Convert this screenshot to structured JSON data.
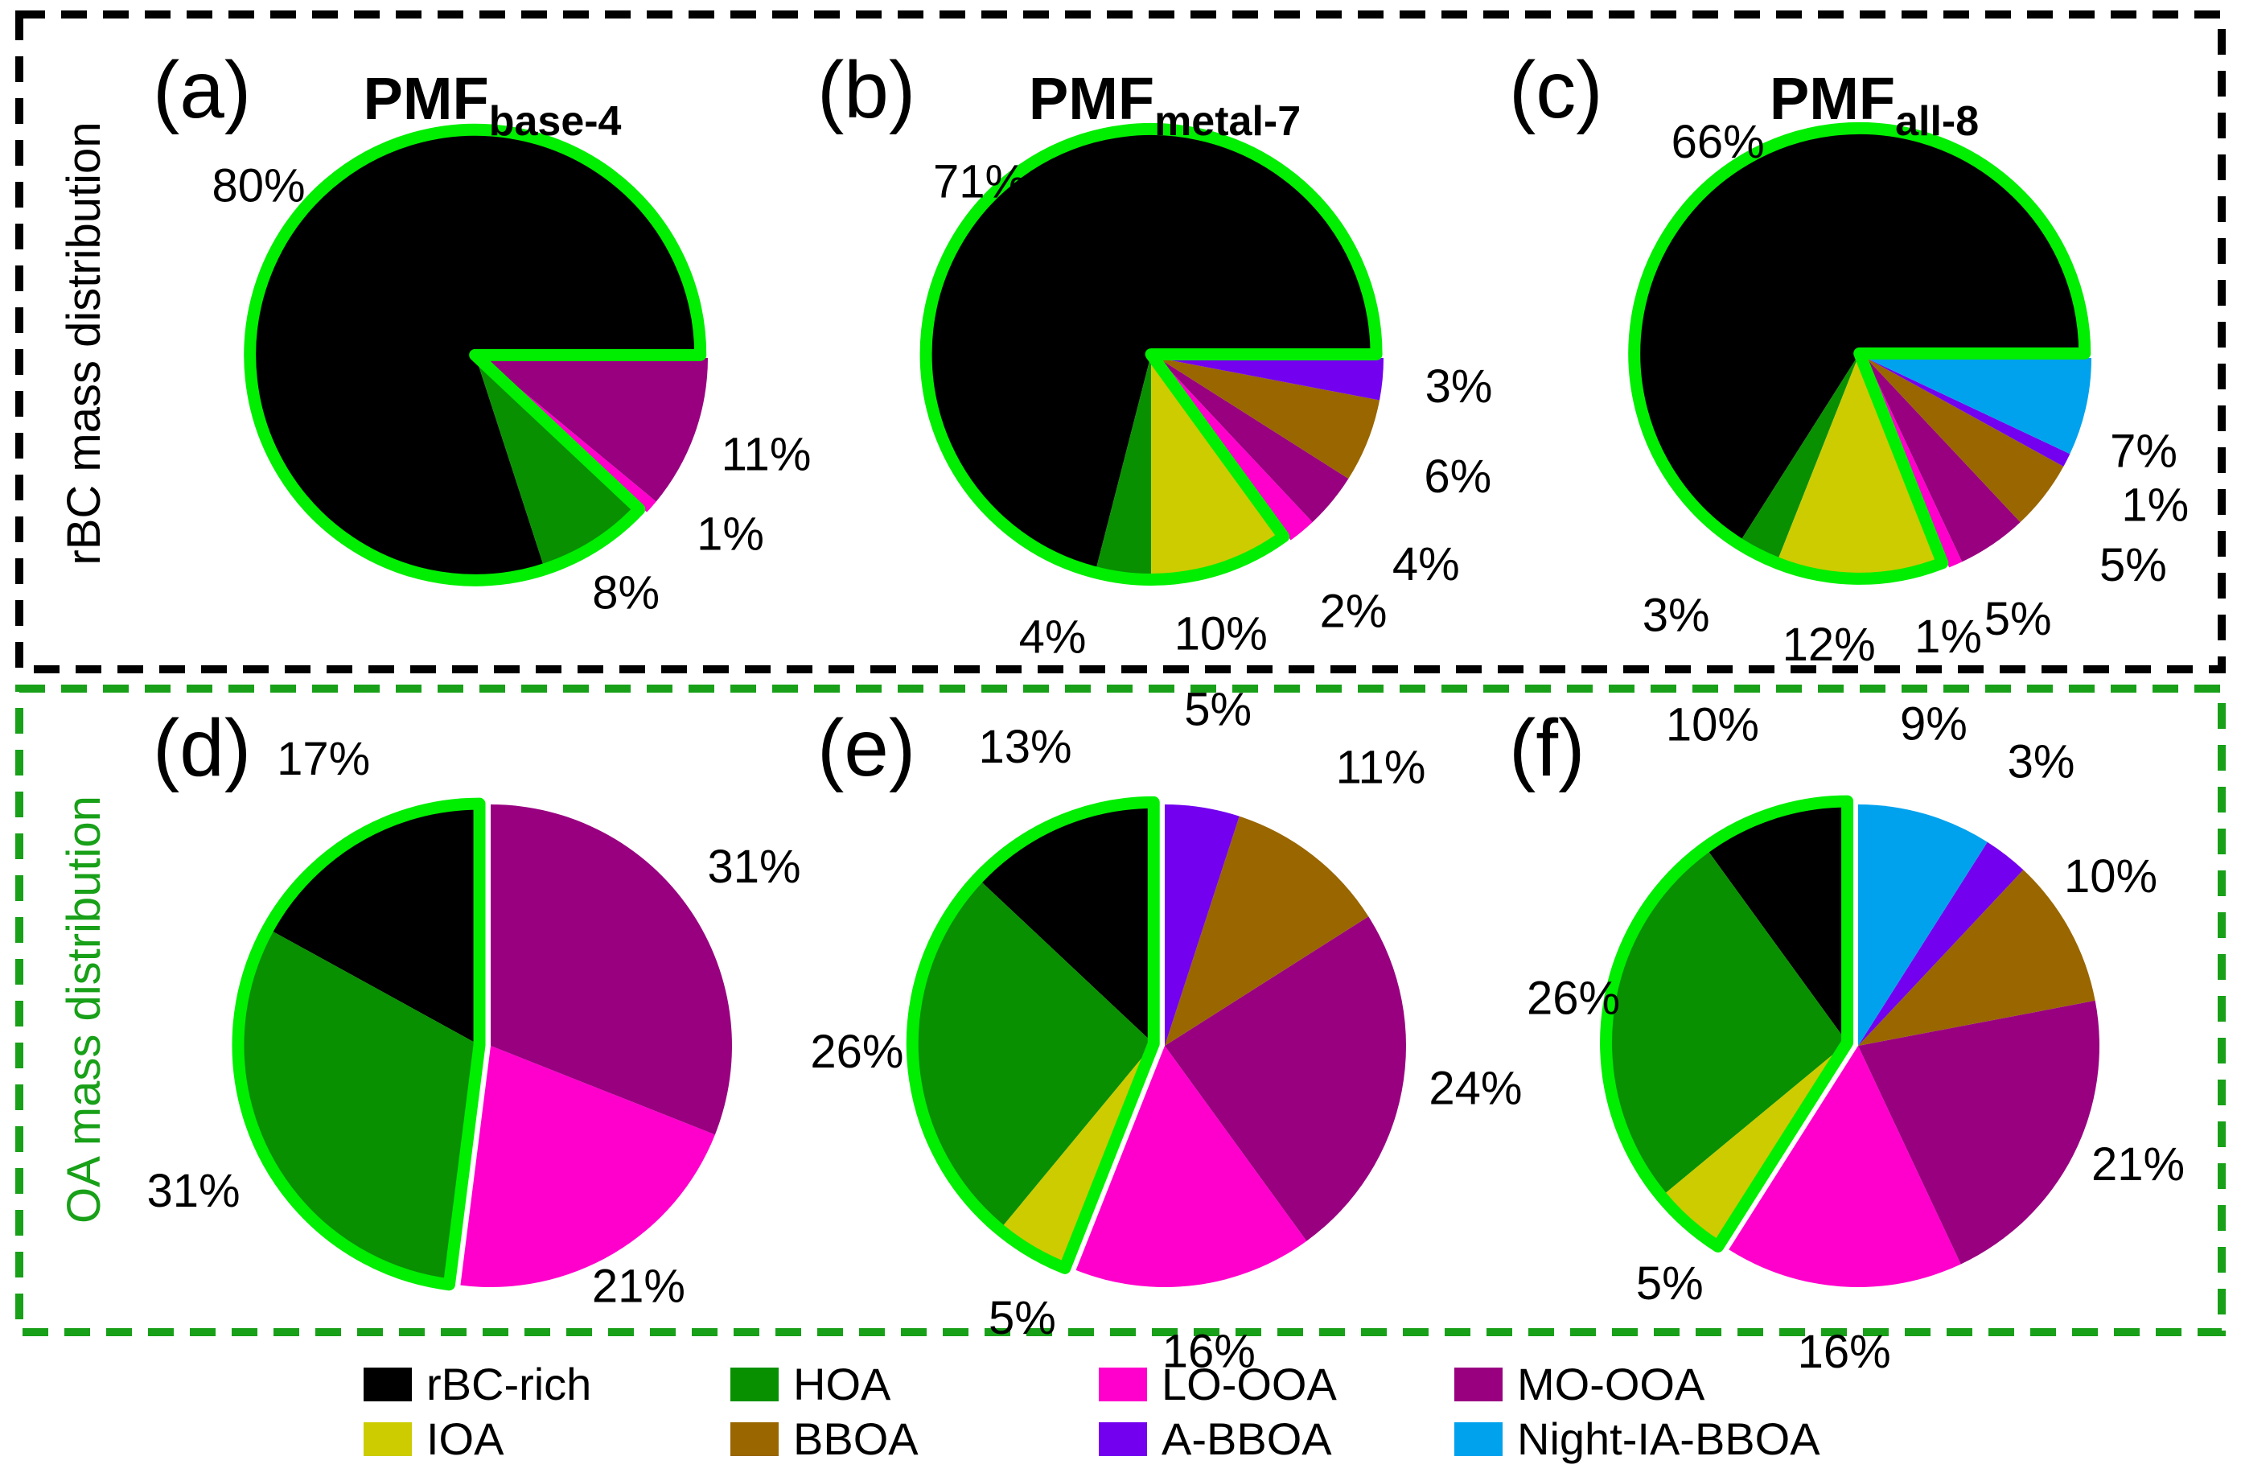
{
  "rows": [
    {
      "label": "rBC mass distribution",
      "color": "#000000"
    },
    {
      "label": "OA mass distribution",
      "color": "#18a018"
    }
  ],
  "highlight_outline_color": "#00ee00",
  "legend": {
    "items": [
      {
        "label": "rBC-rich",
        "color": "#000000"
      },
      {
        "label": "HOA",
        "color": "#089000"
      },
      {
        "label": "LO-OOA",
        "color": "#ff00cc"
      },
      {
        "label": "MO-OOA",
        "color": "#990080"
      },
      {
        "label": "IOA",
        "color": "#cccc00"
      },
      {
        "label": "BBOA",
        "color": "#996600"
      },
      {
        "label": "A-BBOA",
        "color": "#7300ee"
      },
      {
        "label": "Night-IA-BBOA",
        "color": "#00a2ee"
      }
    ]
  },
  "chart_data": [
    {
      "id": "a",
      "type": "pie",
      "panel_label": "(a)",
      "title_main": "PMF",
      "title_sub": "base-4",
      "row": "rBC mass distribution",
      "start_angle_deg": 0,
      "direction": "ccw",
      "outlined_slices": [
        "rBC-rich",
        "HOA"
      ],
      "slices": [
        {
          "label": "rBC-rich",
          "value_pct": 80,
          "pct_label": "80%"
        },
        {
          "label": "HOA",
          "value_pct": 8,
          "pct_label": "8%"
        },
        {
          "label": "LO-OOA",
          "value_pct": 1,
          "pct_label": "1%"
        },
        {
          "label": "MO-OOA",
          "value_pct": 11,
          "pct_label": "11%"
        }
      ]
    },
    {
      "id": "b",
      "type": "pie",
      "panel_label": "(b)",
      "title_main": "PMF",
      "title_sub": "metal-7",
      "row": "rBC mass distribution",
      "start_angle_deg": 0,
      "direction": "ccw",
      "outlined_slices": [
        "rBC-rich",
        "HOA",
        "IOA"
      ],
      "slices": [
        {
          "label": "rBC-rich",
          "value_pct": 71,
          "pct_label": "71%"
        },
        {
          "label": "HOA",
          "value_pct": 4,
          "pct_label": "4%"
        },
        {
          "label": "IOA",
          "value_pct": 10,
          "pct_label": "10%"
        },
        {
          "label": "LO-OOA",
          "value_pct": 2,
          "pct_label": "2%"
        },
        {
          "label": "MO-OOA",
          "value_pct": 4,
          "pct_label": "4%"
        },
        {
          "label": "BBOA",
          "value_pct": 6,
          "pct_label": "6%"
        },
        {
          "label": "A-BBOA",
          "value_pct": 3,
          "pct_label": "3%"
        }
      ]
    },
    {
      "id": "c",
      "type": "pie",
      "panel_label": "(c)",
      "title_main": "PMF",
      "title_sub": "all-8",
      "row": "rBC mass distribution",
      "start_angle_deg": 0,
      "direction": "ccw",
      "outlined_slices": [
        "rBC-rich",
        "HOA",
        "IOA"
      ],
      "slices": [
        {
          "label": "rBC-rich",
          "value_pct": 66,
          "pct_label": "66%"
        },
        {
          "label": "HOA",
          "value_pct": 3,
          "pct_label": "3%"
        },
        {
          "label": "IOA",
          "value_pct": 12,
          "pct_label": "12%"
        },
        {
          "label": "LO-OOA",
          "value_pct": 1,
          "pct_label": "1%"
        },
        {
          "label": "MO-OOA",
          "value_pct": 5,
          "pct_label": "5%"
        },
        {
          "label": "BBOA",
          "value_pct": 5,
          "pct_label": "5%"
        },
        {
          "label": "A-BBOA",
          "value_pct": 1,
          "pct_label": "1%"
        },
        {
          "label": "Night-IA-BBOA",
          "value_pct": 7,
          "pct_label": "7%"
        }
      ]
    },
    {
      "id": "d",
      "type": "pie",
      "panel_label": "(d)",
      "title_main": null,
      "title_sub": null,
      "row": "OA mass distribution",
      "start_angle_deg": 90,
      "direction": "ccw",
      "outlined_slices": [
        "rBC-rich",
        "HOA"
      ],
      "slices": [
        {
          "label": "rBC-rich",
          "value_pct": 17,
          "pct_label": "17%"
        },
        {
          "label": "HOA",
          "value_pct": 31,
          "pct_label": "31%"
        },
        {
          "label": "LO-OOA",
          "value_pct": 21,
          "pct_label": "21%"
        },
        {
          "label": "MO-OOA",
          "value_pct": 31,
          "pct_label": "31%"
        }
      ]
    },
    {
      "id": "e",
      "type": "pie",
      "panel_label": "(e)",
      "title_main": null,
      "title_sub": null,
      "row": "OA mass distribution",
      "start_angle_deg": 90,
      "direction": "ccw",
      "outlined_slices": [
        "rBC-rich",
        "HOA",
        "IOA"
      ],
      "slices": [
        {
          "label": "rBC-rich",
          "value_pct": 13,
          "pct_label": "13%"
        },
        {
          "label": "HOA",
          "value_pct": 26,
          "pct_label": "26%"
        },
        {
          "label": "IOA",
          "value_pct": 5,
          "pct_label": "5%"
        },
        {
          "label": "LO-OOA",
          "value_pct": 16,
          "pct_label": "16%"
        },
        {
          "label": "MO-OOA",
          "value_pct": 24,
          "pct_label": "24%"
        },
        {
          "label": "BBOA",
          "value_pct": 11,
          "pct_label": "11%"
        },
        {
          "label": "A-BBOA",
          "value_pct": 5,
          "pct_label": "5%"
        }
      ]
    },
    {
      "id": "f",
      "type": "pie",
      "panel_label": "(f)",
      "title_main": null,
      "title_sub": null,
      "row": "OA mass distribution",
      "start_angle_deg": 90,
      "direction": "ccw",
      "outlined_slices": [
        "rBC-rich",
        "HOA",
        "IOA"
      ],
      "slices": [
        {
          "label": "rBC-rich",
          "value_pct": 10,
          "pct_label": "10%"
        },
        {
          "label": "HOA",
          "value_pct": 26,
          "pct_label": "26%"
        },
        {
          "label": "IOA",
          "value_pct": 5,
          "pct_label": "5%"
        },
        {
          "label": "LO-OOA",
          "value_pct": 16,
          "pct_label": "16%"
        },
        {
          "label": "MO-OOA",
          "value_pct": 21,
          "pct_label": "21%"
        },
        {
          "label": "BBOA",
          "value_pct": 10,
          "pct_label": "10%"
        },
        {
          "label": "A-BBOA",
          "value_pct": 3,
          "pct_label": "3%"
        },
        {
          "label": "Night-IA-BBOA",
          "value_pct": 9,
          "pct_label": "9%"
        }
      ]
    }
  ]
}
